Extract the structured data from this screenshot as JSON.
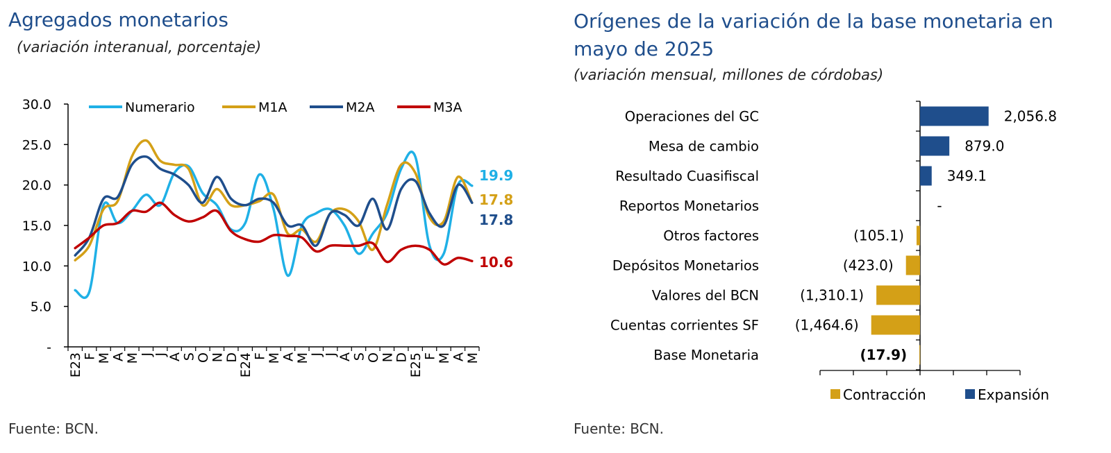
{
  "left": {
    "title": "Agregados monetarios",
    "subtitle": "(variación interanual, porcentaje)",
    "source": "Fuente: BCN."
  },
  "right": {
    "title_line1": "Orígenes de la variación de la base monetaria en",
    "title_line2": "mayo de 2025",
    "subtitle": "(variación mensual, millones de córdobas)",
    "source": "Fuente: BCN."
  },
  "colors": {
    "numerario": "#1fb0e6",
    "m1a": "#d4a017",
    "m2a": "#1f4e8c",
    "m3a": "#c00000",
    "contraccion": "#d4a017",
    "expansion": "#1f4e8c"
  },
  "chart_data": [
    {
      "type": "line",
      "title": "Agregados monetarios",
      "subtitle": "(variación interanual, porcentaje)",
      "ylim": [
        0,
        30
      ],
      "y_ticks": [
        "-",
        "5.0",
        "10.0",
        "15.0",
        "20.0",
        "25.0",
        "30.0"
      ],
      "y_tick_values": [
        0,
        5,
        10,
        15,
        20,
        25,
        30
      ],
      "categories": [
        "E23",
        "F",
        "M",
        "A",
        "M",
        "J",
        "J",
        "A",
        "S",
        "O",
        "N",
        "D",
        "E24",
        "F",
        "M",
        "A",
        "M",
        "J",
        "J",
        "A",
        "S",
        "O",
        "N",
        "D",
        "E25",
        "F",
        "M",
        "A",
        "M"
      ],
      "legend": "top",
      "series": [
        {
          "name": "Numerario",
          "color_key": "numerario",
          "end_label": "19.9",
          "values": [
            7.0,
            6.8,
            17.5,
            15.3,
            16.8,
            18.8,
            17.5,
            21.5,
            22.3,
            19.0,
            17.5,
            14.5,
            15.3,
            21.3,
            17.0,
            8.8,
            15.0,
            16.5,
            17.0,
            15.0,
            11.5,
            14.0,
            16.5,
            22.0,
            23.5,
            12.5,
            11.5,
            20.0,
            19.9
          ]
        },
        {
          "name": "M1A",
          "color_key": "m1a",
          "end_label": "17.8",
          "values": [
            10.7,
            12.5,
            17.0,
            18.0,
            23.5,
            25.5,
            23.0,
            22.5,
            22.0,
            17.5,
            19.5,
            17.5,
            17.5,
            18.0,
            18.8,
            14.0,
            14.5,
            13.0,
            16.5,
            17.0,
            15.5,
            12.0,
            17.5,
            22.5,
            21.5,
            16.0,
            15.5,
            21.0,
            17.8
          ]
        },
        {
          "name": "M2A",
          "color_key": "m2a",
          "end_label": "17.8",
          "values": [
            11.3,
            13.5,
            18.3,
            18.5,
            22.5,
            23.5,
            22.0,
            21.3,
            20.0,
            17.8,
            21.0,
            18.3,
            17.5,
            18.3,
            17.8,
            15.0,
            15.0,
            12.5,
            16.5,
            16.3,
            15.0,
            18.3,
            14.5,
            19.5,
            20.5,
            16.5,
            15.0,
            20.0,
            17.8
          ]
        },
        {
          "name": "M3A",
          "color_key": "m3a",
          "end_label": "10.6",
          "values": [
            12.2,
            13.5,
            15.0,
            15.3,
            16.8,
            16.7,
            17.8,
            16.3,
            15.5,
            16.0,
            16.8,
            14.3,
            13.3,
            13.0,
            13.8,
            13.7,
            13.5,
            11.8,
            12.5,
            12.5,
            12.5,
            12.8,
            10.5,
            12.0,
            12.5,
            12.0,
            10.2,
            11.0,
            10.6
          ]
        }
      ]
    },
    {
      "type": "bar",
      "orientation": "horizontal",
      "title": "Orígenes de la variación de la base monetaria en mayo de 2025",
      "subtitle": "(variación mensual, millones de córdobas)",
      "legend": "bottom-right",
      "legend_entries": [
        {
          "name": "Contracción",
          "color_key": "contraccion"
        },
        {
          "name": "Expansión",
          "color_key": "expansion"
        }
      ],
      "xlim": [
        -3000,
        3000
      ],
      "categories": [
        "Operaciones del GC",
        "Mesa de cambio",
        "Resultado Cuasifiscal",
        "Reportos Monetarios",
        "Otros factores",
        "Depósitos Monetarios",
        "Valores del BCN",
        "Cuentas corrientes SF",
        "Base Monetaria"
      ],
      "values": [
        2056.8,
        879.0,
        349.1,
        0,
        -105.1,
        -423.0,
        -1310.1,
        -1464.6,
        -17.9
      ],
      "value_labels": [
        "2,056.8",
        "879.0",
        "349.1",
        "-",
        "(105.1)",
        "(423.0)",
        "(1,310.1)",
        "(1,464.6)",
        "(17.9)"
      ]
    }
  ]
}
